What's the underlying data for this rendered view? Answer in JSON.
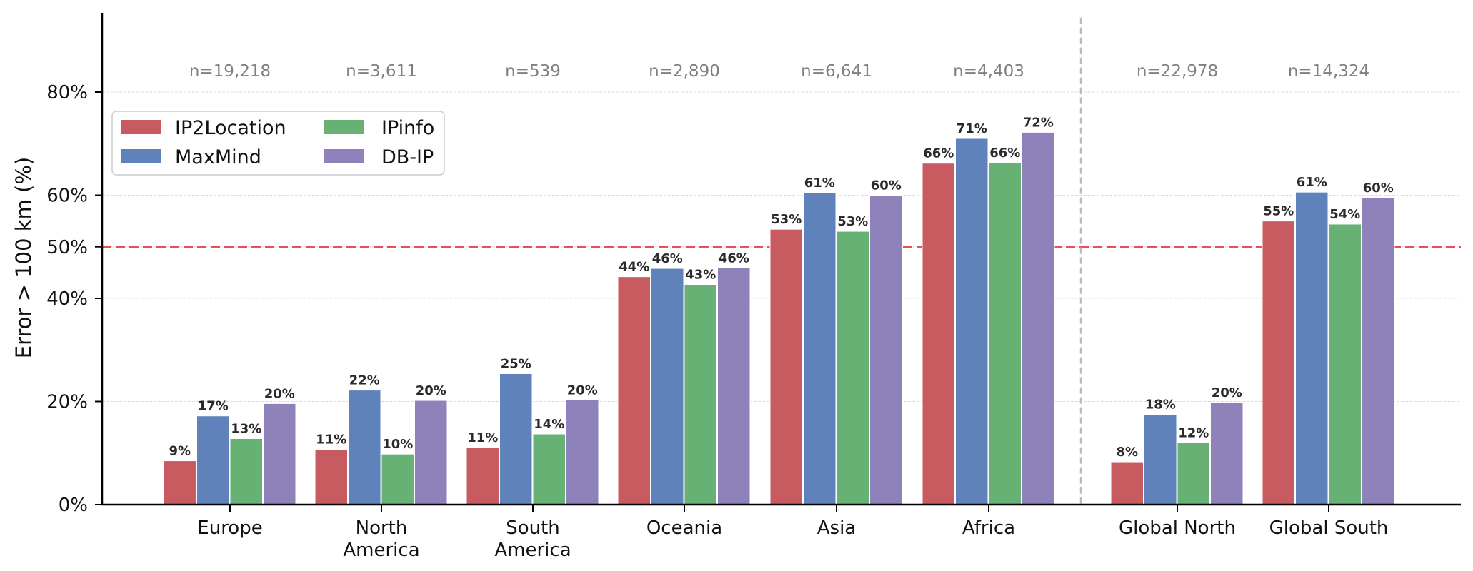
{
  "chart_data": {
    "type": "bar",
    "ylabel": "Error > 100 km (%)",
    "xlabel": "",
    "ylim": [
      0,
      95
    ],
    "yticks": [
      {
        "value": 0,
        "label": "0%"
      },
      {
        "value": 20,
        "label": "20%"
      },
      {
        "value": 40,
        "label": "40%"
      },
      {
        "value": 50,
        "label": "50%"
      },
      {
        "value": 60,
        "label": "60%"
      },
      {
        "value": 80,
        "label": "80%"
      }
    ],
    "grid": true,
    "threshold": {
      "value": 50,
      "color": "#e8474c",
      "style": "dashed"
    },
    "legend_position": "upper-left",
    "categories": [
      {
        "lines": [
          "Europe"
        ],
        "n": "n=19,218"
      },
      {
        "lines": [
          "North",
          "America"
        ],
        "n": "n=3,611"
      },
      {
        "lines": [
          "South",
          "America"
        ],
        "n": "n=539"
      },
      {
        "lines": [
          "Oceania"
        ],
        "n": "n=2,890"
      },
      {
        "lines": [
          "Asia"
        ],
        "n": "n=6,641"
      },
      {
        "lines": [
          "Africa"
        ],
        "n": "n=4,403"
      },
      {
        "lines": [
          "Global North"
        ],
        "n": "n=22,978"
      },
      {
        "lines": [
          "Global South"
        ],
        "n": "n=14,324"
      }
    ],
    "separator_after_category": 5,
    "series": [
      {
        "name": "IP2Location",
        "color": "#c85b60",
        "values": [
          8.5,
          10.7,
          11.1,
          44.2,
          53.4,
          66.2,
          8.3,
          55.0
        ],
        "labels": [
          "9%",
          "11%",
          "11%",
          "44%",
          "53%",
          "66%",
          "8%",
          "55%"
        ]
      },
      {
        "name": "MaxMind",
        "color": "#5f82bb",
        "values": [
          17.2,
          22.2,
          25.4,
          45.8,
          60.5,
          71.0,
          17.5,
          60.6
        ],
        "labels": [
          "17%",
          "22%",
          "25%",
          "46%",
          "61%",
          "71%",
          "18%",
          "61%"
        ]
      },
      {
        "name": "IPinfo",
        "color": "#66b173",
        "values": [
          12.8,
          9.8,
          13.7,
          42.7,
          53.0,
          66.3,
          12.0,
          54.4
        ],
        "labels": [
          "13%",
          "10%",
          "14%",
          "43%",
          "53%",
          "66%",
          "12%",
          "54%"
        ]
      },
      {
        "name": "DB-IP",
        "color": "#8f81b9",
        "values": [
          19.6,
          20.2,
          20.3,
          45.9,
          60.0,
          72.2,
          19.8,
          59.5
        ],
        "labels": [
          "20%",
          "20%",
          "20%",
          "46%",
          "60%",
          "72%",
          "20%",
          "60%"
        ]
      }
    ]
  }
}
